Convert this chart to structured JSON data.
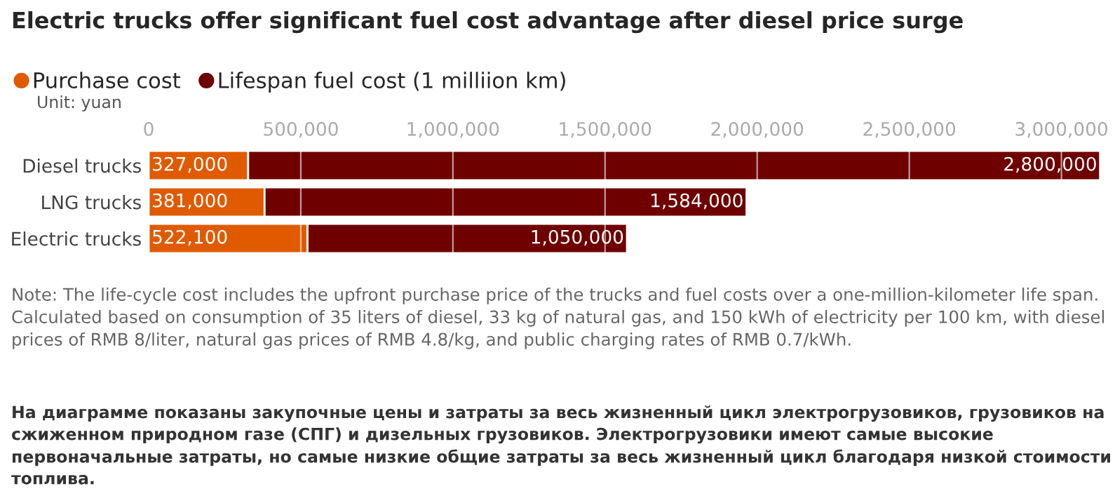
{
  "chart_data": {
    "type": "bar",
    "orientation": "horizontal",
    "stacked": true,
    "title": "Electric trucks offer significant fuel cost advantage after diesel price surge",
    "categories": [
      "Diesel trucks",
      "LNG trucks",
      "Electric trucks"
    ],
    "series": [
      {
        "name": "Purchase cost",
        "color": "#e05a00",
        "values": [
          327000,
          381000,
          522100
        ],
        "value_labels": [
          "327,000",
          "381,000",
          "522,100"
        ]
      },
      {
        "name": "Lifespan fuel cost (1 milliion km)",
        "color": "#6e0000",
        "values": [
          2800000,
          1584000,
          1050000
        ],
        "value_labels": [
          "2,800,000",
          "1,584,000",
          "1,050,000"
        ]
      }
    ],
    "xlim": [
      0,
      3130000
    ],
    "xticks": [
      0,
      {
        "value": 500000,
        "label": "500,000"
      },
      {
        "value": 1000000,
        "label": "1,000,000"
      },
      {
        "value": 1500000,
        "label": "1,500,000"
      },
      {
        "value": 2000000,
        "label": "2,000,000"
      },
      {
        "value": 2500000,
        "label": "2,500,000"
      },
      {
        "value": 3000000,
        "label": "3,000,000"
      }
    ],
    "grid": "x",
    "legend": "top left",
    "annotations": [
      "Unit: yuan",
      "Note: The life-cycle cost includes the upfront purchase price of the trucks and fuel costs over a one-million-kilometer life span. Calculated based on consumption of 35 liters of diesel, 33 kg of natural gas, and 150 kWh of electricity per 100 km, with diesel prices of RMB 8/liter, natural gas prices of RMB 4.8/kg, and public charging rates of RMB 0.7/kWh.",
      "На диаграмме показаны закупочные цены и затраты за весь жизненный цикл электрогрузовиков, грузовиков на сжиженном природном газе (СПГ) и дизельных грузовиков. Электрогрузовики имеют самые высокие первоначальные затраты, но самые низкие общие затраты за весь жизненный цикл благодаря низкой стоимости топлива."
    ]
  }
}
